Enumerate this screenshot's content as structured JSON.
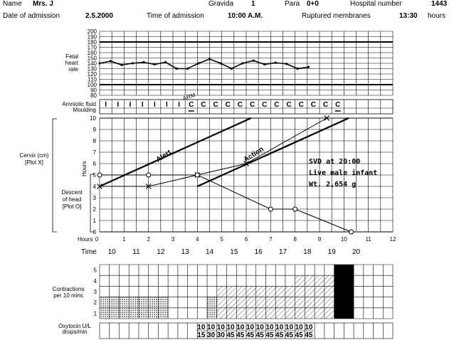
{
  "header": {
    "name_label": "Name",
    "name_value": "Mrs. J",
    "gravida_label": "Gravida",
    "gravida_value": "1",
    "para_label": "Para",
    "para_value": "0+0",
    "hospital_label": "Hospital number",
    "hospital_value": "1443",
    "admission_date_label": "Date of admission",
    "admission_date_value": "2.5.2000",
    "admission_time_label": "Time of admission",
    "admission_time_value": "10:00 A.M.",
    "membranes_label": "Ruptured membranes",
    "membranes_value": "13:30",
    "membranes_unit": "hours"
  },
  "fhr": {
    "label_lines": [
      "Fetal",
      "heart",
      "rate"
    ],
    "y_ticks": [
      200,
      190,
      180,
      170,
      160,
      150,
      140,
      130,
      120,
      110,
      100,
      90,
      80
    ],
    "values": [
      140,
      144,
      137,
      140,
      142,
      138,
      142,
      130,
      130,
      140,
      148,
      140,
      130,
      140,
      145,
      138,
      141,
      139,
      130,
      133
    ]
  },
  "amniotic": {
    "label": "Amniotic fluid",
    "arm_label": "ARM",
    "values": [
      "I",
      "I",
      "I",
      "I",
      "I",
      "I",
      "I",
      "C",
      "C",
      "C",
      "C",
      "C",
      "C",
      "C",
      "C",
      "C",
      "C",
      "C",
      "C",
      "C"
    ]
  },
  "moulding": {
    "label": "Moulding"
  },
  "cervix": {
    "cervix_label_lines": [
      "Cervix (cm)",
      "[Plot X]"
    ],
    "descent_label_lines": [
      "Descent",
      "of head",
      "[Plot O]"
    ],
    "hours_vertical_label": "Hours",
    "y_ticks": [
      "10",
      "9",
      "8",
      "7",
      "6",
      "5",
      "4",
      "3",
      "2",
      "1",
      "0"
    ],
    "alert_label": "Alert",
    "action_label": "Action",
    "cervix_points": [
      [
        0,
        4
      ],
      [
        2,
        4
      ],
      [
        4,
        5
      ],
      [
        6,
        6
      ],
      [
        9.3,
        10
      ]
    ],
    "descent_points": [
      [
        0,
        5
      ],
      [
        2,
        5
      ],
      [
        4,
        5
      ],
      [
        7,
        2
      ],
      [
        8,
        2
      ],
      [
        10.3,
        0
      ]
    ],
    "notes": [
      "SVD at 20:00",
      "Live male infant",
      "Wt. 2,654 g"
    ]
  },
  "hours": {
    "label": "Hours",
    "ticks": [
      "0",
      "1",
      "2",
      "3",
      "4",
      "5",
      "6",
      "7",
      "8",
      "9",
      "10",
      "11",
      "12"
    ]
  },
  "time": {
    "label": "Time",
    "values": [
      "10",
      "11",
      "12",
      "13",
      "14",
      "15",
      "16",
      "17",
      "18",
      "19",
      "20"
    ]
  },
  "contractions": {
    "label_lines": [
      "Contractions",
      "per 10 mins"
    ],
    "y_ticks": [
      "5",
      "4",
      "3",
      "2",
      "1"
    ],
    "values": [
      2,
      2,
      2,
      2,
      2,
      2,
      2,
      1,
      1,
      1,
      1,
      2,
      3,
      3,
      3,
      3,
      3,
      3,
      3,
      3,
      4,
      4,
      4,
      4,
      5,
      5
    ],
    "patterns": [
      "dots",
      "dots",
      "dots",
      "dots",
      "dots",
      "dots",
      "dots",
      "none",
      "none",
      "none",
      "none",
      "dots",
      "hatch",
      "hatch",
      "hatch",
      "hatch",
      "hatch",
      "hatch",
      "hatch",
      "hatch",
      "hatch",
      "hatch",
      "hatch",
      "hatch",
      "solid",
      "solid"
    ]
  },
  "oxytocin": {
    "label_lines": [
      "Oxytocin U/L",
      "drops/min"
    ],
    "top": [
      "10",
      "10",
      "10",
      "10",
      "10",
      "10",
      "10",
      "10",
      "10",
      "10",
      "10",
      "10"
    ],
    "bottom": [
      "15",
      "30",
      "30",
      "45",
      "45",
      "45",
      "45",
      "45",
      "45",
      "45",
      "45",
      "45"
    ]
  }
}
